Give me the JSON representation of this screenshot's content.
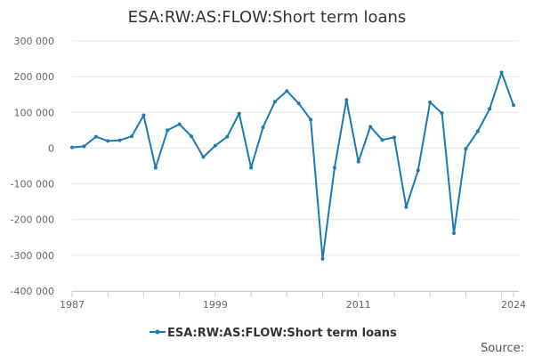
{
  "chart_data": {
    "type": "line",
    "title": "ESA:RW:AS:FLOW:Short term loans",
    "source_label": "Source:",
    "legend": "ESA:RW:AS:FLOW:Short term loans",
    "xlabel": "",
    "ylabel": "",
    "xlim": [
      1987,
      2024
    ],
    "ylim": [
      -400000,
      300000
    ],
    "x_ticks": [
      1987,
      1999,
      2011,
      2024
    ],
    "x_ticks_labeled": [
      "1987",
      "1999",
      "2011",
      "2024"
    ],
    "y_ticks": [
      300000,
      200000,
      100000,
      0,
      -100000,
      -200000,
      -300000,
      -400000
    ],
    "y_tick_labels": [
      "300 000",
      "200 000",
      "100 000",
      "0",
      "-100 000",
      "-200 000",
      "-300 000",
      "-400 000"
    ],
    "grid": "horizontal",
    "color": "#1a7ab5",
    "series": [
      {
        "name": "ESA:RW:AS:FLOW:Short term loans",
        "x": [
          1987,
          1988,
          1989,
          1990,
          1991,
          1992,
          1993,
          1994,
          1995,
          1996,
          1997,
          1998,
          1999,
          2000,
          2001,
          2002,
          2003,
          2004,
          2005,
          2006,
          2007,
          2008,
          2009,
          2010,
          2011,
          2012,
          2013,
          2014,
          2015,
          2016,
          2017,
          2018,
          2019,
          2020,
          2021,
          2022,
          2023,
          2024
        ],
        "values": [
          2000,
          5000,
          32000,
          20000,
          22000,
          33000,
          92000,
          -55000,
          50000,
          67000,
          33000,
          -25000,
          7000,
          32000,
          97000,
          -55000,
          58000,
          130000,
          160000,
          125000,
          80000,
          -310000,
          -55000,
          135000,
          -38000,
          60000,
          23000,
          30000,
          -165000,
          -62000,
          128000,
          98000,
          -238000,
          -2000,
          47000,
          110000,
          212000,
          120000
        ]
      }
    ]
  }
}
